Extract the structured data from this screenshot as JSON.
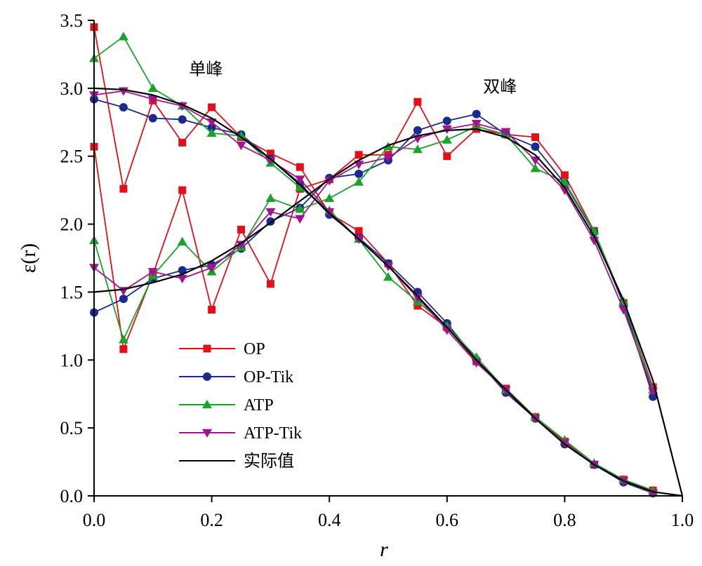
{
  "chart_data": {
    "type": "line",
    "xlabel": "r",
    "ylabel": "ε(r)",
    "xlim": [
      0.0,
      1.0
    ],
    "ylim": [
      0.0,
      3.5
    ],
    "xticks": [
      "0.0",
      "0.2",
      "0.4",
      "0.6",
      "0.8",
      "1.0"
    ],
    "yticks": [
      "0.0",
      "0.5",
      "1.0",
      "1.5",
      "2.0",
      "2.5",
      "3.0",
      "3.5"
    ],
    "grid": false,
    "legend_position": "lower-left",
    "annotations": [
      {
        "text": "单峰",
        "x": 0.19,
        "y": 3.1
      },
      {
        "text": "双峰",
        "x": 0.69,
        "y": 2.97
      }
    ],
    "x": [
      0.0,
      0.05,
      0.1,
      0.15,
      0.2,
      0.25,
      0.3,
      0.35,
      0.4,
      0.45,
      0.5,
      0.55,
      0.6,
      0.65,
      0.7,
      0.75,
      0.8,
      0.85,
      0.9,
      0.95
    ],
    "series": [
      {
        "name": "OP",
        "color": "#e3101a",
        "marker": "square",
        "curves": [
          [
            3.45,
            2.26,
            2.91,
            2.6,
            2.86,
            2.64,
            2.52,
            2.42,
            2.08,
            1.95,
            1.71,
            1.4,
            1.24,
            0.99,
            0.79,
            0.58,
            0.4,
            0.23,
            0.12,
            0.04
          ],
          [
            2.57,
            1.08,
            1.63,
            2.25,
            1.37,
            1.96,
            1.56,
            2.26,
            2.33,
            2.51,
            2.51,
            2.9,
            2.5,
            2.7,
            2.66,
            2.64,
            2.36,
            1.95,
            1.42,
            0.8
          ]
        ]
      },
      {
        "name": "OP-Tik",
        "color": "#1b2a8e",
        "marker": "circle",
        "curves": [
          [
            2.92,
            2.86,
            2.78,
            2.77,
            2.71,
            2.66,
            2.48,
            2.3,
            2.07,
            1.9,
            1.71,
            1.5,
            1.27,
            1.0,
            0.76,
            0.57,
            0.38,
            0.23,
            0.1,
            0.02
          ],
          [
            1.35,
            1.45,
            1.6,
            1.66,
            1.7,
            1.82,
            2.02,
            2.12,
            2.34,
            2.37,
            2.47,
            2.69,
            2.76,
            2.81,
            2.66,
            2.57,
            2.3,
            1.94,
            1.41,
            0.73
          ]
        ]
      },
      {
        "name": "ATP",
        "color": "#1aa32b",
        "marker": "triangle-up",
        "curves": [
          [
            3.22,
            3.38,
            3.0,
            2.87,
            2.67,
            2.65,
            2.45,
            2.27,
            2.1,
            1.89,
            1.61,
            1.43,
            1.25,
            1.02,
            0.78,
            0.58,
            0.41,
            0.24,
            0.12,
            0.04
          ],
          [
            1.88,
            1.15,
            1.62,
            1.87,
            1.65,
            1.83,
            2.19,
            2.11,
            2.19,
            2.31,
            2.57,
            2.55,
            2.62,
            2.72,
            2.66,
            2.41,
            2.31,
            1.95,
            1.43,
            0.78
          ]
        ]
      },
      {
        "name": "ATP-Tik",
        "color": "#a0158e",
        "marker": "triangle-down",
        "curves": [
          [
            2.95,
            2.98,
            2.92,
            2.87,
            2.75,
            2.58,
            2.47,
            2.33,
            2.09,
            1.89,
            1.69,
            1.46,
            1.22,
            0.98,
            0.78,
            0.57,
            0.39,
            0.23,
            0.11,
            0.02
          ],
          [
            1.68,
            1.51,
            1.65,
            1.6,
            1.68,
            1.85,
            2.09,
            2.04,
            2.32,
            2.44,
            2.49,
            2.63,
            2.7,
            2.74,
            2.68,
            2.47,
            2.25,
            1.88,
            1.37,
            0.77
          ]
        ]
      },
      {
        "name": "实际值",
        "color": "#000000",
        "marker": "none",
        "curves": [
          {
            "x": [
              0.0,
              0.05,
              0.1,
              0.15,
              0.2,
              0.25,
              0.3,
              0.35,
              0.4,
              0.45,
              0.5,
              0.55,
              0.6,
              0.65,
              0.7,
              0.75,
              0.8,
              0.85,
              0.9,
              0.95,
              1.0
            ],
            "y": [
              3.0,
              2.99,
              2.95,
              2.88,
              2.78,
              2.64,
              2.48,
              2.29,
              2.08,
              1.89,
              1.69,
              1.47,
              1.24,
              1.0,
              0.78,
              0.57,
              0.38,
              0.23,
              0.11,
              0.03,
              0.0
            ]
          },
          {
            "x": [
              0.0,
              0.05,
              0.1,
              0.15,
              0.2,
              0.25,
              0.3,
              0.35,
              0.4,
              0.45,
              0.5,
              0.55,
              0.6,
              0.65,
              0.7,
              0.75,
              0.8,
              0.85,
              0.9,
              0.95,
              1.0
            ],
            "y": [
              1.5,
              1.52,
              1.57,
              1.63,
              1.73,
              1.86,
              2.01,
              2.17,
              2.33,
              2.47,
              2.58,
              2.65,
              2.69,
              2.7,
              2.64,
              2.51,
              2.27,
              1.91,
              1.44,
              0.85,
              0.0
            ]
          }
        ]
      }
    ]
  }
}
